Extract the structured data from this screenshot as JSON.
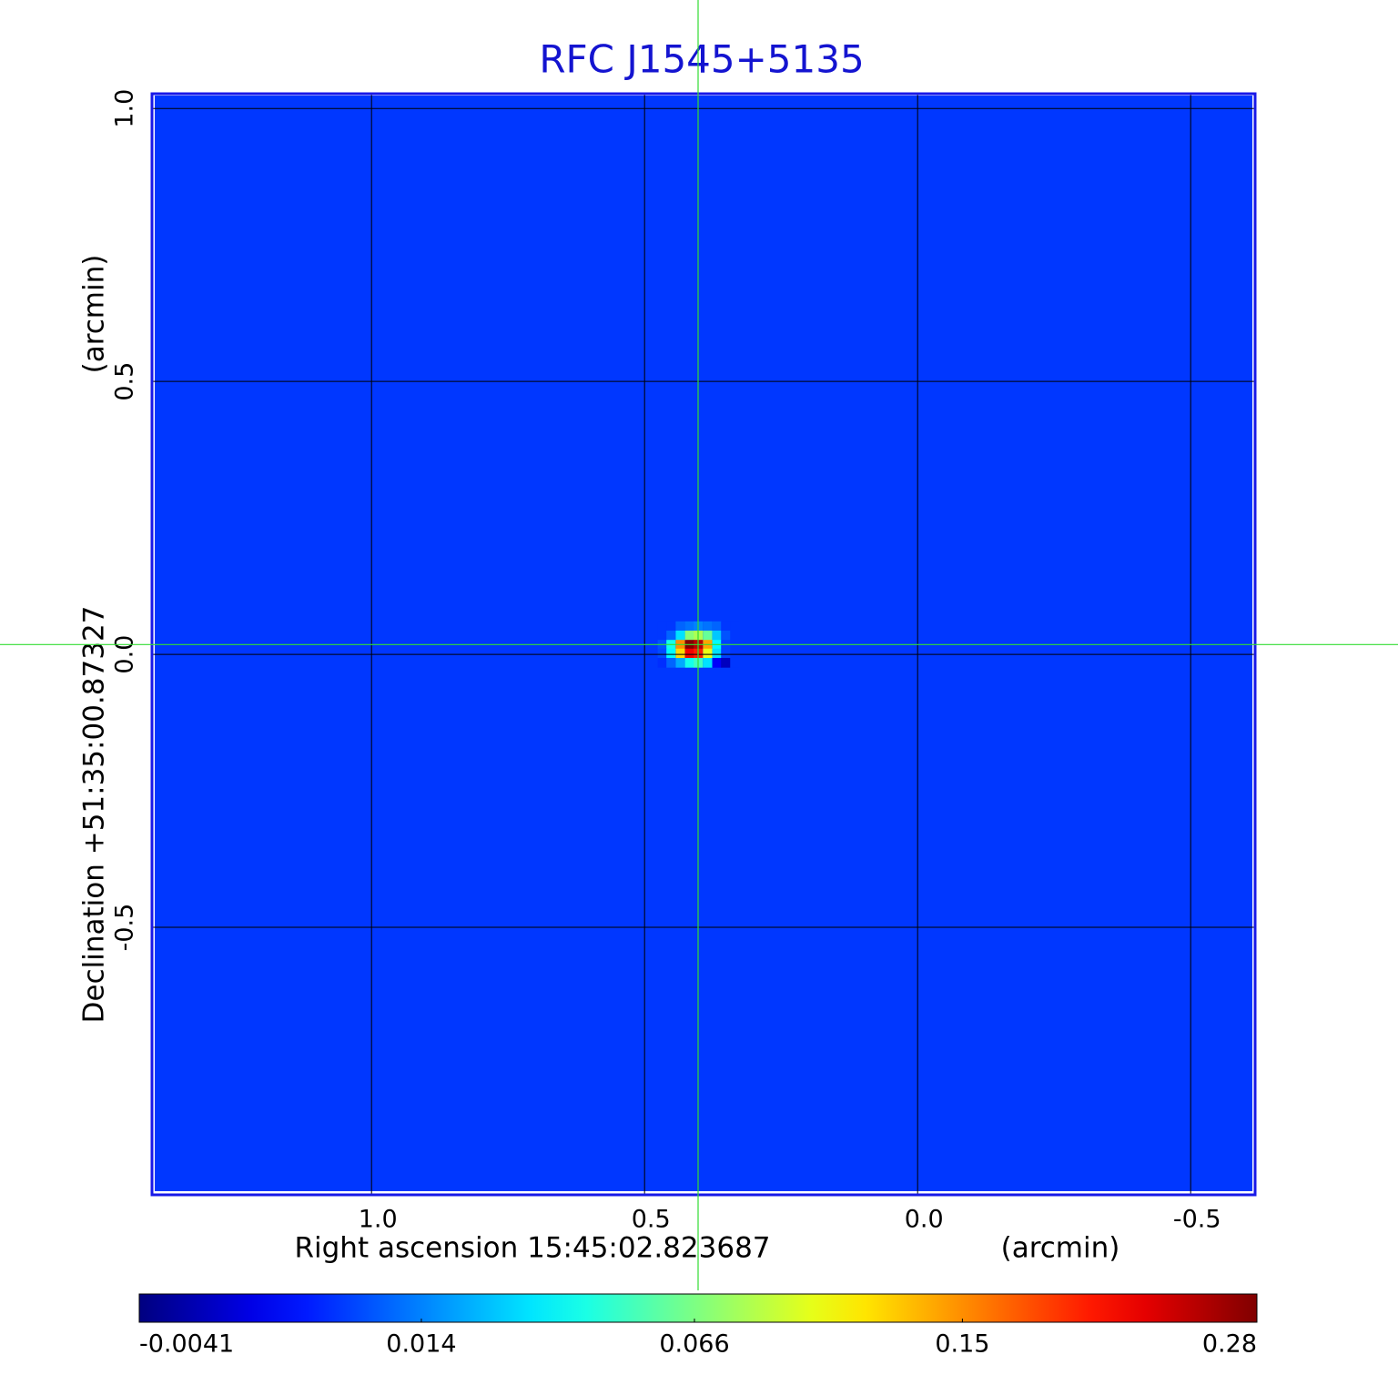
{
  "chart_data": {
    "type": "image",
    "title": "RFC J1545+5135",
    "x_label": "Right ascension  15:45:02.823687",
    "x_unit": "(arcmin)",
    "y_label": "Declination  +51:35:00.87327",
    "y_unit": "(arcmin)",
    "xlim": [
      1.402,
      -0.618
    ],
    "ylim": [
      -0.99,
      1.027
    ],
    "xticks": [
      {
        "value": 1,
        "label": "1.0"
      },
      0.5,
      {
        "value": 0,
        "label": "0.0"
      },
      -0.5
    ],
    "yticks": [
      -0.5,
      {
        "value": 0,
        "label": "0.0"
      },
      0.5,
      {
        "value": 1,
        "label": "1.0"
      }
    ],
    "grid": true,
    "crosshair": [
      0.402,
      0.018
    ],
    "colormap": "jet",
    "image": {
      "background": 0.005,
      "ra": [
        0.468,
        0.452,
        0.435,
        0.418,
        0.402,
        0.385,
        0.368,
        0.352,
        0.335
      ],
      "dec": [
        0.052,
        0.035,
        0.018,
        0.002,
        -0.015
      ],
      "values": [
        [
          0.005,
          0.005,
          0.01,
          0.012,
          0.014,
          0.012,
          0.01,
          0.005,
          0.005
        ],
        [
          0.005,
          0.01,
          0.03,
          0.07,
          0.08,
          0.06,
          0.025,
          0.008,
          0.005
        ],
        [
          0.008,
          0.04,
          0.15,
          0.28,
          0.25,
          0.14,
          0.035,
          0.006,
          0.005
        ],
        [
          0.007,
          0.035,
          0.12,
          0.22,
          0.2,
          0.1,
          0.03,
          0.006,
          0.005
        ],
        [
          0.004,
          0.01,
          0.02,
          0.04,
          0.05,
          0.03,
          0.0,
          -0.003,
          0.005
        ]
      ]
    },
    "colorbar": {
      "scale": "sqrt",
      "lim": [
        -0.0041,
        0.28
      ],
      "ticks": [
        -0.0041,
        0.014,
        0.066,
        0.15,
        0.28
      ]
    }
  }
}
